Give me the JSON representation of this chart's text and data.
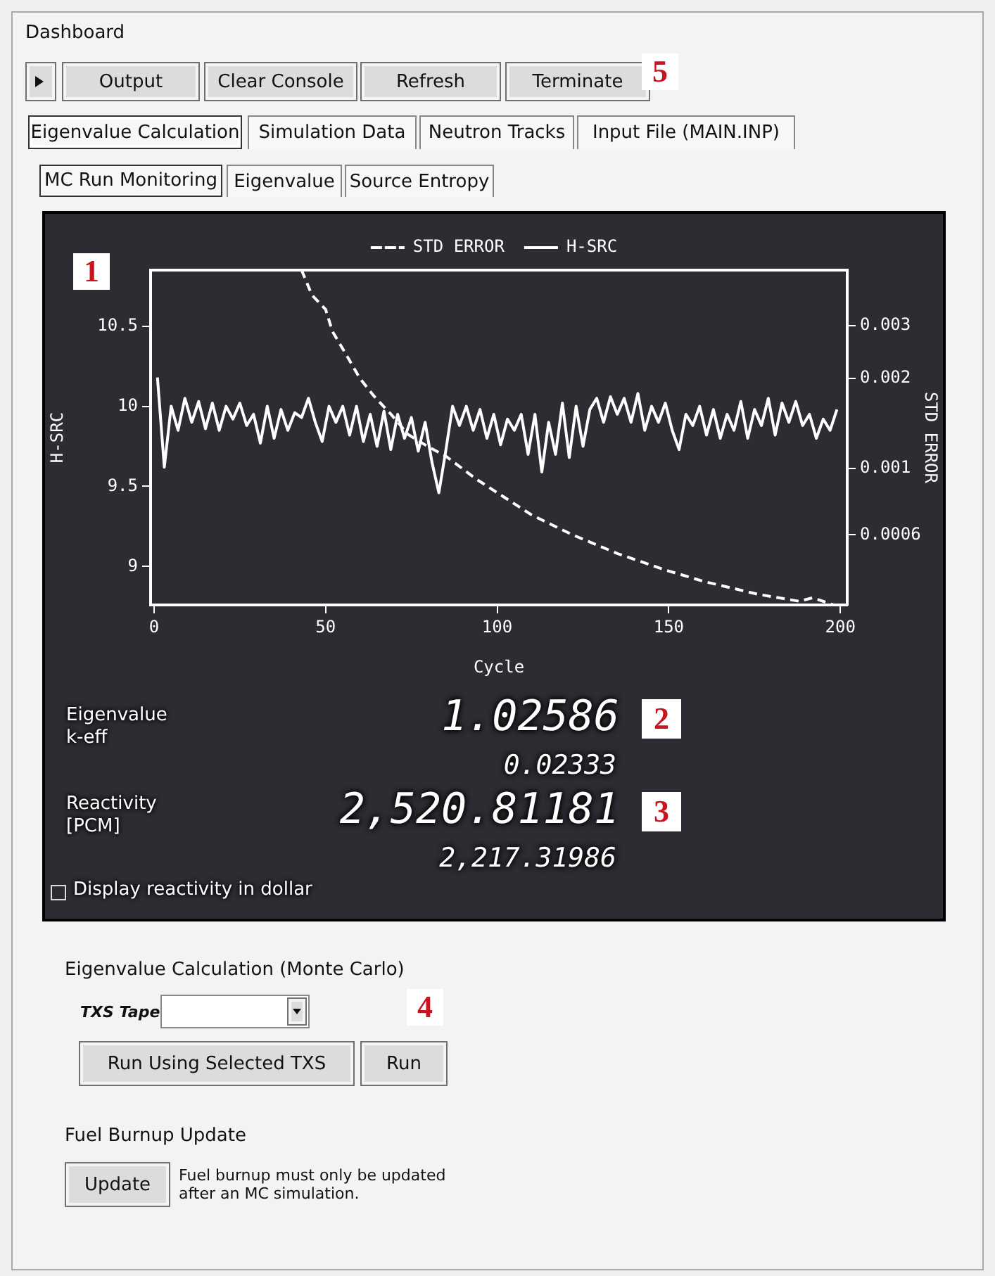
{
  "chart_data": [
    {
      "type": "other",
      "title": "Dashboard",
      "annotations": [
        "Output",
        "Clear Console",
        "Refresh",
        "Terminate",
        "5",
        "Eigenvalue Calculation",
        "Simulation Data",
        "Neutron Tracks",
        "Input File (MAIN.INP)",
        "MC Run Monitoring",
        "Eigenvalue",
        "Source Entropy"
      ]
    },
    {
      "type": "line",
      "xlabel": "Cycle",
      "ylabel": "H-SRC",
      "y2label": "STD ERROR",
      "xlim": [
        -1,
        202
      ],
      "xticks": [
        0,
        50,
        100,
        150,
        200
      ],
      "ylim": [
        8.76,
        10.85
      ],
      "yticks": [
        9,
        9.5,
        10,
        10.5
      ],
      "y2lim": [
        0.00035,
        0.0046
      ],
      "y2ticks": [
        0.0006,
        0.001,
        0.002,
        0.003
      ],
      "log": "y2",
      "legend": "top",
      "marker": "none",
      "annotations": [
        "1"
      ],
      "series": [
        {
          "name": "STD ERROR",
          "color": "#ffffff",
          "axis": "y2",
          "line_style": "dashed",
          "x": [
            43,
            46,
            50,
            52,
            56,
            60,
            64,
            69,
            74,
            80,
            85,
            94,
            100,
            110,
            122,
            135,
            149,
            160,
            176,
            188,
            192,
            198
          ],
          "values": [
            0.0046,
            0.0038,
            0.0034,
            0.00287,
            0.0024,
            0.002,
            0.00175,
            0.00152,
            0.0013,
            0.00118,
            0.0011,
            0.00092,
            0.00083,
            0.0007,
            0.0006,
            0.00052,
            0.000458,
            0.00042,
            0.00038,
            0.00036,
            0.00037,
            0.00035
          ]
        },
        {
          "name": "H-SRC",
          "color": "#ffffff",
          "line_style": "solid",
          "x": [
            1,
            3,
            5,
            7,
            9,
            11,
            13,
            15,
            17,
            19,
            21,
            23,
            25,
            27,
            29,
            31,
            33,
            35,
            37,
            39,
            41,
            43,
            45,
            47,
            49,
            51,
            53,
            55,
            57,
            59,
            61,
            63,
            65,
            67,
            69,
            71,
            73,
            75,
            77,
            79,
            81,
            83,
            85,
            87,
            89,
            91,
            93,
            95,
            97,
            99,
            101,
            103,
            105,
            107,
            109,
            111,
            113,
            115,
            117,
            119,
            121,
            123,
            125,
            127,
            129,
            131,
            133,
            135,
            137,
            139,
            141,
            143,
            145,
            147,
            149,
            151,
            153,
            155,
            157,
            159,
            161,
            163,
            165,
            167,
            169,
            171,
            173,
            175,
            177,
            179,
            181,
            183,
            185,
            187,
            189,
            191,
            193,
            195,
            197,
            199
          ],
          "values": [
            10.18,
            9.62,
            10.0,
            9.85,
            10.05,
            9.9,
            10.03,
            9.86,
            10.02,
            9.85,
            10.0,
            9.92,
            10.02,
            9.88,
            9.95,
            9.77,
            10.0,
            9.8,
            9.98,
            9.85,
            9.96,
            9.93,
            10.05,
            9.9,
            9.78,
            10.0,
            9.9,
            10.0,
            9.82,
            10.0,
            9.78,
            9.95,
            9.75,
            9.97,
            9.73,
            9.95,
            9.8,
            9.93,
            9.72,
            9.9,
            9.65,
            9.46,
            9.72,
            10.0,
            9.88,
            10.0,
            9.85,
            9.98,
            9.8,
            9.95,
            9.76,
            9.92,
            9.85,
            9.95,
            9.7,
            9.95,
            9.59,
            9.9,
            9.7,
            10.02,
            9.68,
            10.0,
            9.75,
            9.98,
            10.05,
            9.9,
            10.06,
            9.95,
            10.05,
            9.9,
            10.08,
            9.85,
            10.0,
            9.9,
            10.02,
            9.85,
            9.73,
            9.95,
            9.88,
            10.0,
            9.82,
            9.98,
            9.8,
            9.95,
            9.85,
            10.03,
            9.8,
            9.98,
            9.88,
            10.05,
            9.82,
            10.02,
            9.9,
            10.03,
            9.88,
            9.95,
            9.8,
            9.92,
            9.85,
            9.98
          ]
        }
      ]
    },
    {
      "type": "other",
      "annotations": [
        "Eigenvalue k-eff",
        "1.02586",
        "2",
        "0.02333",
        "Reactivity [PCM]",
        "2,520.81181",
        "3",
        "2,217.31986",
        "Display reactivity in dollar",
        "Eigenvalue Calculation (Monte Carlo)",
        "TXS Tape",
        "4",
        "Run Using Selected TXS",
        "Run",
        "Fuel Burnup Update",
        "Update",
        "Fuel burnup must only be updated after an MC simulation."
      ]
    }
  ]
}
